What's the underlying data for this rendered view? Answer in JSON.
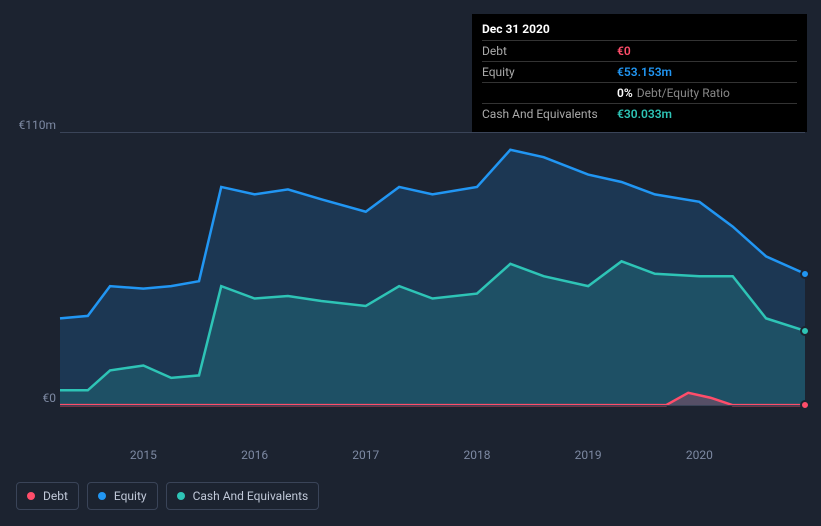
{
  "tooltip": {
    "date": "Dec 31 2020",
    "rows": [
      {
        "label": "Debt",
        "value": "€0",
        "color": "#ff4d6a"
      },
      {
        "label": "Equity",
        "value": "€53.153m",
        "color": "#2196f3"
      },
      {
        "label": "",
        "pct": "0%",
        "desc": "Debt/Equity Ratio"
      },
      {
        "label": "Cash And Equivalents",
        "value": "€30.033m",
        "color": "#2ec4b6"
      }
    ]
  },
  "y_axis": {
    "ticks": [
      {
        "label": "€110m",
        "value": 110
      },
      {
        "label": "€0",
        "value": 0
      }
    ],
    "min": -8,
    "max": 115
  },
  "x_axis": {
    "years": [
      2015,
      2016,
      2017,
      2018,
      2019,
      2020
    ],
    "start": 2014.25,
    "end": 2020.95
  },
  "series": {
    "debt": {
      "label": "Debt",
      "color": "#ff4d6a",
      "fill": "rgba(255,77,106,0.25)",
      "points": [
        [
          2014.25,
          0
        ],
        [
          2015,
          0
        ],
        [
          2015.5,
          0
        ],
        [
          2016,
          0
        ],
        [
          2016.5,
          0
        ],
        [
          2017,
          0
        ],
        [
          2017.5,
          0
        ],
        [
          2018,
          0
        ],
        [
          2018.5,
          0
        ],
        [
          2019,
          0
        ],
        [
          2019.25,
          0
        ],
        [
          2019.5,
          0
        ],
        [
          2019.7,
          0
        ],
        [
          2019.9,
          5
        ],
        [
          2020.1,
          3
        ],
        [
          2020.3,
          0
        ],
        [
          2020.6,
          0
        ],
        [
          2020.95,
          0
        ]
      ]
    },
    "equity": {
      "label": "Equity",
      "color": "#2196f3",
      "fill": "rgba(33,150,243,0.18)",
      "points": [
        [
          2014.25,
          35
        ],
        [
          2014.5,
          36
        ],
        [
          2014.7,
          48
        ],
        [
          2015,
          47
        ],
        [
          2015.25,
          48
        ],
        [
          2015.5,
          50
        ],
        [
          2015.7,
          88
        ],
        [
          2016,
          85
        ],
        [
          2016.3,
          87
        ],
        [
          2016.6,
          83
        ],
        [
          2017,
          78
        ],
        [
          2017.3,
          88
        ],
        [
          2017.6,
          85
        ],
        [
          2018,
          88
        ],
        [
          2018.3,
          103
        ],
        [
          2018.6,
          100
        ],
        [
          2019,
          93
        ],
        [
          2019.3,
          90
        ],
        [
          2019.6,
          85
        ],
        [
          2020,
          82
        ],
        [
          2020.3,
          72
        ],
        [
          2020.6,
          60
        ],
        [
          2020.95,
          53
        ]
      ]
    },
    "cash": {
      "label": "Cash And Equivalents",
      "color": "#2ec4b6",
      "fill": "rgba(46,196,182,0.18)",
      "points": [
        [
          2014.25,
          6
        ],
        [
          2014.5,
          6
        ],
        [
          2014.7,
          14
        ],
        [
          2015,
          16
        ],
        [
          2015.25,
          11
        ],
        [
          2015.5,
          12
        ],
        [
          2015.7,
          48
        ],
        [
          2016,
          43
        ],
        [
          2016.3,
          44
        ],
        [
          2016.6,
          42
        ],
        [
          2017,
          40
        ],
        [
          2017.3,
          48
        ],
        [
          2017.6,
          43
        ],
        [
          2018,
          45
        ],
        [
          2018.3,
          57
        ],
        [
          2018.6,
          52
        ],
        [
          2019,
          48
        ],
        [
          2019.3,
          58
        ],
        [
          2019.6,
          53
        ],
        [
          2020,
          52
        ],
        [
          2020.3,
          52
        ],
        [
          2020.6,
          35
        ],
        [
          2020.95,
          30
        ]
      ]
    }
  },
  "legend": [
    {
      "key": "debt",
      "label": "Debt",
      "color": "#ff4d6a"
    },
    {
      "key": "equity",
      "label": "Equity",
      "color": "#2196f3"
    },
    {
      "key": "cash",
      "label": "Cash And Equivalents",
      "color": "#2ec4b6"
    }
  ],
  "colors": {
    "bg": "#1c2330",
    "grid": "#3a4458",
    "axis_text": "#7d89a2"
  }
}
